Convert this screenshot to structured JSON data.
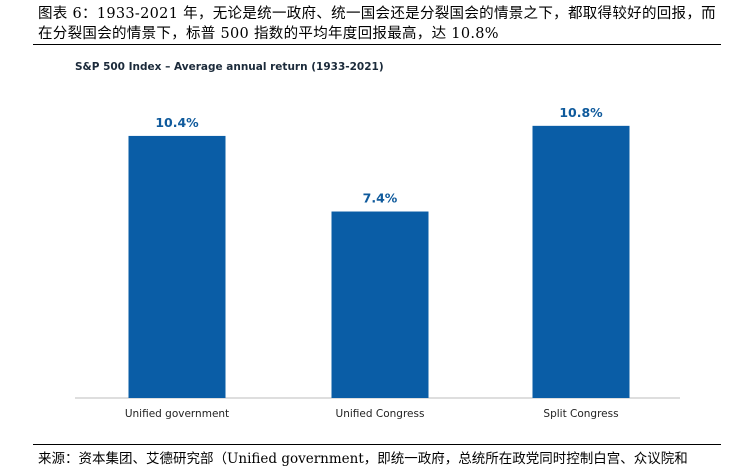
{
  "figure": {
    "title": "图表 6：1933-2021 年，无论是统一政府、统一国会还是分裂国会的情景之下，都取得较好的回报，而在分裂国会的情景下，标普 500 指数的平均年度回报最高，达 10.8%",
    "source": "来源：资本集团、艾德研究部（Unified government，即统一政府，总统所在政党同时控制白宫、众议院和"
  },
  "colors": {
    "bar": "#0a5da6",
    "label": "#0f5a9c",
    "axis": "#bdbdbd"
  },
  "chart_data": {
    "type": "bar",
    "title": "S&P 500 Index – Average annual return (1933-2021)",
    "xlabel": "",
    "ylabel": "",
    "categories": [
      "Unified government",
      "Unified Congress",
      "Split Congress"
    ],
    "values": [
      10.4,
      7.4,
      10.8
    ],
    "value_labels": [
      "10.4%",
      "7.4%",
      "10.8%"
    ],
    "ylim": [
      0,
      12
    ],
    "grid": false,
    "legend": "none"
  }
}
